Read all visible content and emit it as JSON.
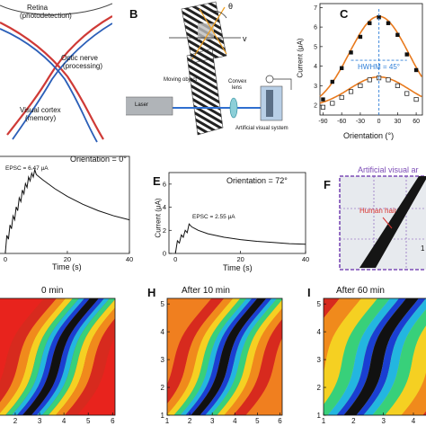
{
  "panel_letters": {
    "b": "B",
    "c": "C",
    "e": "E",
    "f": "F",
    "h": "H",
    "i": "I"
  },
  "panel_a": {
    "retina": "Retina",
    "retina_sub": "(photodetection)",
    "optic_nerve": "Optic nerve",
    "optic_nerve_sub": "(processing)",
    "cortex": "Visual cortex",
    "cortex_sub": "(memory)"
  },
  "panel_b": {
    "theta": "θ",
    "v": "v",
    "moving_object": "Moving object",
    "moving_object_sub": "",
    "convex_lens": "Convex",
    "convex_lens_sub": "lens",
    "laser": "Laser",
    "system": "Artificial visual system"
  },
  "panel_c": {
    "ylabel": "Current (μA)",
    "xlabel": "Orientation (°)",
    "hwhm": "HWHM = 45°",
    "xticks": [
      "-90",
      "-60",
      "-30",
      "0",
      "30",
      "60"
    ],
    "yticks": [
      "2",
      "3",
      "4",
      "5",
      "6",
      "7"
    ]
  },
  "panel_d": {
    "title": "Orientation = 0°",
    "epsc": "EPSC = 6.47 μA",
    "xlabel": "Time (s)",
    "xticks": [
      "0",
      "20",
      "40"
    ]
  },
  "panel_e": {
    "title": "Orientation = 72°",
    "epsc": "EPSC = 2.55 μA",
    "xlabel": "Time (s)",
    "ylabel": "Current (μA)",
    "xticks": [
      "0",
      "20",
      "40"
    ],
    "yticks": [
      "0",
      "2",
      "4",
      "6"
    ]
  },
  "panel_f": {
    "title": "Artificial visual ar",
    "hair": "Human hair",
    "scale": "1"
  },
  "panel_g": {
    "title": "0 min",
    "xticks": [
      "2",
      "3",
      "4",
      "5",
      "6"
    ]
  },
  "panel_h": {
    "title": "After 10 min",
    "xticks": [
      "1",
      "2",
      "3",
      "4",
      "5",
      "6"
    ],
    "yticks": [
      "1",
      "2",
      "3",
      "4",
      "5"
    ]
  },
  "panel_i": {
    "title": "After 60 min",
    "xticks": [
      "1",
      "2",
      "3",
      "4"
    ],
    "yticks": [
      "1",
      "2",
      "3",
      "4",
      "5"
    ]
  },
  "colors": {
    "orange": "#e87a1e",
    "blue_line": "#2f7fd8",
    "purple": "#7b4bb5",
    "red_path": "#d8322e"
  },
  "chart_data": [
    {
      "type": "scatter",
      "xlabel": "Orientation (°)",
      "ylabel": "Current (μA)",
      "xlim": [
        -95,
        70
      ],
      "ylim": [
        1.5,
        7.2
      ],
      "series": [
        {
          "x": [
            -90,
            -75,
            -60,
            -45,
            -30,
            -15,
            0,
            15,
            30,
            45,
            60
          ],
          "values": [
            2.3,
            3.2,
            3.9,
            4.7,
            5.5,
            6.2,
            6.5,
            6.2,
            5.6,
            4.6,
            3.8
          ]
        },
        {
          "x": [
            -90,
            -75,
            -60,
            -45,
            -30,
            -15,
            0,
            15,
            30,
            45,
            60
          ],
          "values": [
            1.9,
            2.1,
            2.4,
            2.7,
            3.0,
            3.3,
            3.4,
            3.3,
            3.0,
            2.6,
            2.3
          ]
        }
      ]
    },
    {
      "type": "line",
      "xlabel": "Time (s)",
      "xlim": [
        -2,
        40
      ],
      "ylim": [
        0,
        7.5
      ],
      "x": [
        0,
        0.5,
        1,
        1.5,
        2,
        2.5,
        3,
        3.5,
        4,
        4.5,
        5,
        5.5,
        6,
        6.5,
        7,
        7.5,
        8,
        8.5,
        9,
        9.5,
        10,
        12,
        16,
        20,
        25,
        30,
        35,
        40
      ],
      "values": [
        0,
        1.4,
        1.1,
        2.2,
        1.9,
        2.9,
        2.6,
        3.6,
        3.3,
        4.3,
        4.0,
        4.9,
        4.6,
        5.4,
        5.1,
        5.9,
        5.6,
        6.2,
        5.9,
        6.47,
        6.1,
        5.7,
        5.0,
        4.4,
        3.8,
        3.3,
        2.9,
        2.6
      ]
    },
    {
      "type": "line",
      "xlabel": "Time (s)",
      "ylabel": "Current (μA)",
      "xlim": [
        -2,
        40
      ],
      "ylim": [
        0,
        7
      ],
      "x": [
        0,
        0.6,
        1.2,
        1.8,
        2.4,
        3,
        3.6,
        4.2,
        5,
        7,
        10,
        15,
        20,
        25,
        30,
        35,
        40
      ],
      "values": [
        0,
        1.1,
        0.9,
        1.6,
        1.4,
        2.0,
        1.8,
        2.55,
        2.3,
        2.0,
        1.7,
        1.4,
        1.2,
        1.05,
        0.95,
        0.85,
        0.8
      ]
    }
  ]
}
